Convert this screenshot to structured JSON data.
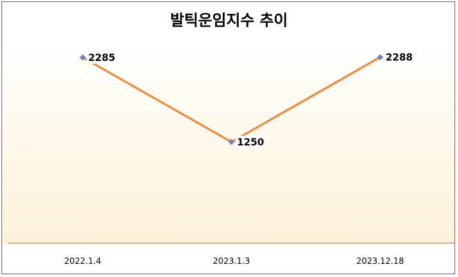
{
  "chart_data": {
    "type": "line",
    "title": "발틱운임지수 추이",
    "xlabel": "",
    "ylabel": "",
    "categories": [
      "2022.1.4",
      "2023.1.3",
      "2023.12.18"
    ],
    "series": [
      {
        "values": [
          2285,
          1250,
          2288
        ]
      }
    ],
    "ylim": [
      0,
      2600
    ],
    "grid": false,
    "legend": "none",
    "colors": {
      "line": "#f0883c",
      "marker": "#6f7fc4",
      "axis": "#8c8c8c",
      "plot_bg_top": "#ffffff",
      "plot_bg_bottom": "#fdf2d8"
    }
  }
}
